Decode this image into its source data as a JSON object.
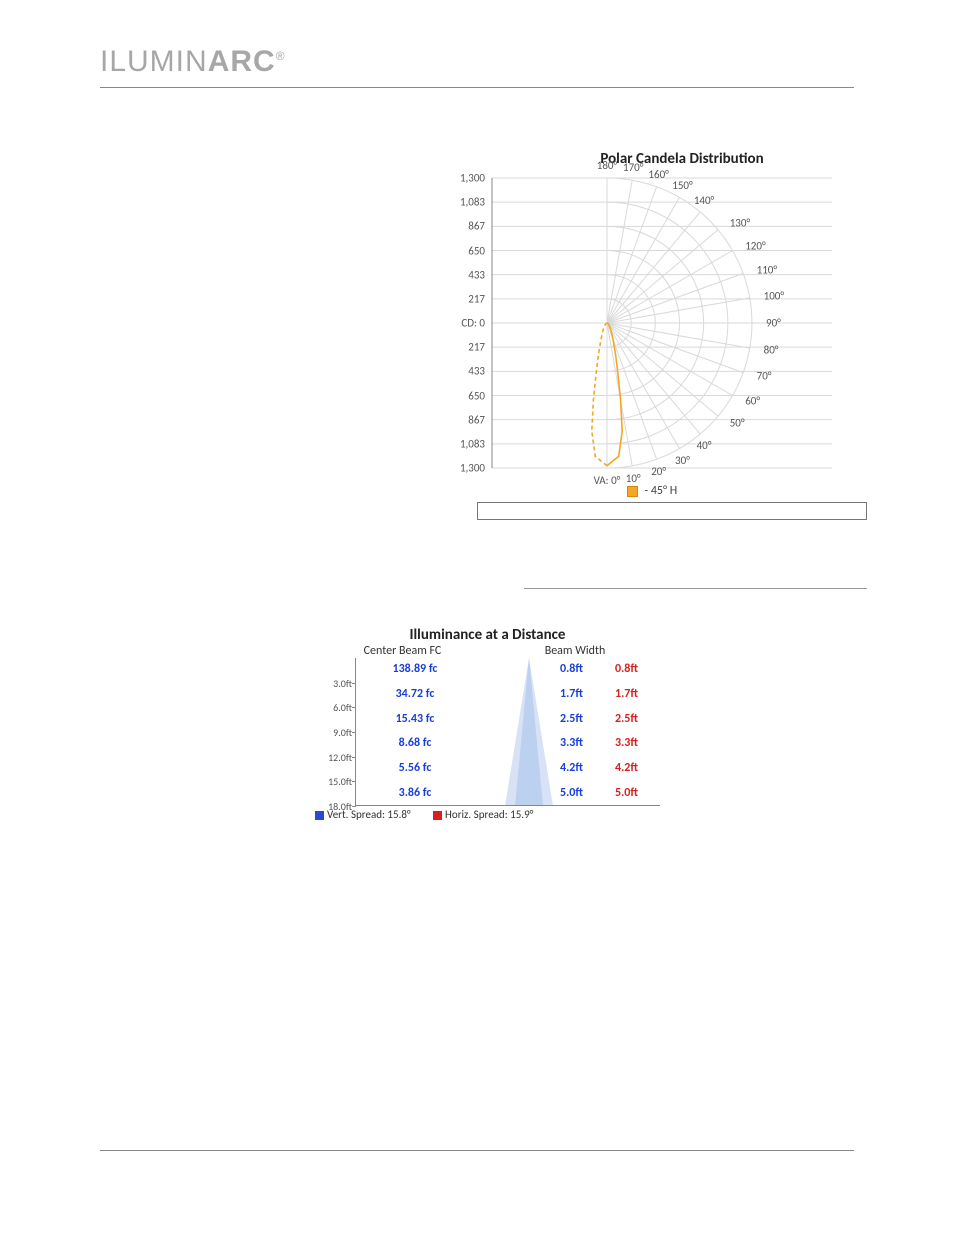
{
  "brand": {
    "part1": "ILUMIN",
    "part2": "ARC",
    "reg": "®"
  },
  "polar": {
    "title": "Polar Candela Distribution",
    "legend_label": "- 45° H",
    "legend_color": "#f5a623",
    "radial_max": 1300,
    "radial_ticks": [
      {
        "v": 1300,
        "label": "1,300"
      },
      {
        "v": 1083,
        "label": "1,083"
      },
      {
        "v": 867,
        "label": "867"
      },
      {
        "v": 650,
        "label": "650"
      },
      {
        "v": 433,
        "label": "433"
      },
      {
        "v": 217,
        "label": "217"
      },
      {
        "v": 0,
        "label": "CD: 0"
      }
    ],
    "top_angles": [
      {
        "a": 180,
        "label": "180°"
      },
      {
        "a": 170,
        "label": "170°"
      },
      {
        "a": 160,
        "label": "160°"
      },
      {
        "a": 150,
        "label": "150°"
      },
      {
        "a": 140,
        "label": "140°"
      }
    ],
    "side_angles_upper": [
      {
        "a": 130,
        "label": "130°"
      },
      {
        "a": 120,
        "label": "120°"
      },
      {
        "a": 110,
        "label": "110°"
      },
      {
        "a": 100,
        "label": "100°"
      },
      {
        "a": 90,
        "label": "90°"
      }
    ],
    "side_angles_lower": [
      {
        "a": 80,
        "label": "80°"
      },
      {
        "a": 70,
        "label": "70°"
      },
      {
        "a": 60,
        "label": "60°"
      },
      {
        "a": 50,
        "label": "50°"
      }
    ],
    "bottom_angles": [
      {
        "a": 0,
        "label": "VA: 0°"
      },
      {
        "a": 10,
        "label": "10°"
      },
      {
        "a": 20,
        "label": "20°"
      },
      {
        "a": 30,
        "label": "30°"
      },
      {
        "a": 40,
        "label": "40°"
      }
    ],
    "solid_curve": [
      {
        "a": 0,
        "r": 1280
      },
      {
        "a": 5,
        "r": 1200
      },
      {
        "a": 8,
        "r": 980
      },
      {
        "a": 10,
        "r": 700
      },
      {
        "a": 12,
        "r": 480
      },
      {
        "a": 15,
        "r": 300
      },
      {
        "a": 20,
        "r": 160
      },
      {
        "a": 30,
        "r": 70
      },
      {
        "a": 45,
        "r": 25
      },
      {
        "a": 60,
        "r": 10
      },
      {
        "a": 80,
        "r": 3
      },
      {
        "a": 90,
        "r": 0
      }
    ],
    "dash_curve": [
      {
        "a": 0,
        "r": 1280
      },
      {
        "a": -5,
        "r": 1200
      },
      {
        "a": -8,
        "r": 980
      },
      {
        "a": -10,
        "r": 700
      },
      {
        "a": -12,
        "r": 480
      },
      {
        "a": -15,
        "r": 300
      },
      {
        "a": -20,
        "r": 160
      },
      {
        "a": -30,
        "r": 70
      },
      {
        "a": -45,
        "r": 25
      },
      {
        "a": -60,
        "r": 10
      },
      {
        "a": -80,
        "r": 3
      },
      {
        "a": -90,
        "r": 0
      }
    ],
    "grid_color": "#d9d9d9",
    "curve_color": "#f5a623",
    "axis_color": "#888888"
  },
  "illum": {
    "title": "Illuminance at a Distance",
    "sub_left": "Center Beam FC",
    "sub_right": "Beam Width",
    "rows": [
      {
        "dist": "3.0ft",
        "fc": "138.89 fc",
        "bw1": "0.8ft",
        "bw2": "0.8ft"
      },
      {
        "dist": "6.0ft",
        "fc": "34.72 fc",
        "bw1": "1.7ft",
        "bw2": "1.7ft"
      },
      {
        "dist": "9.0ft",
        "fc": "15.43 fc",
        "bw1": "2.5ft",
        "bw2": "2.5ft"
      },
      {
        "dist": "12.0ft",
        "fc": "8.68 fc",
        "bw1": "3.3ft",
        "bw2": "3.3ft"
      },
      {
        "dist": "15.0ft",
        "fc": "5.56 fc",
        "bw1": "4.2ft",
        "bw2": "4.2ft"
      },
      {
        "dist": "18.0ft",
        "fc": "3.86 fc",
        "bw1": "5.0ft",
        "bw2": "5.0ft"
      }
    ],
    "vert_spread": "Vert. Spread: 15.8°",
    "horiz_spread": "Horiz. Spread: 15.9°",
    "beam_color1": "#bcd0f0",
    "beam_color2": "#d7e2f5",
    "fc_color": "#1a3fd6",
    "bw2_color": "#d62020"
  }
}
